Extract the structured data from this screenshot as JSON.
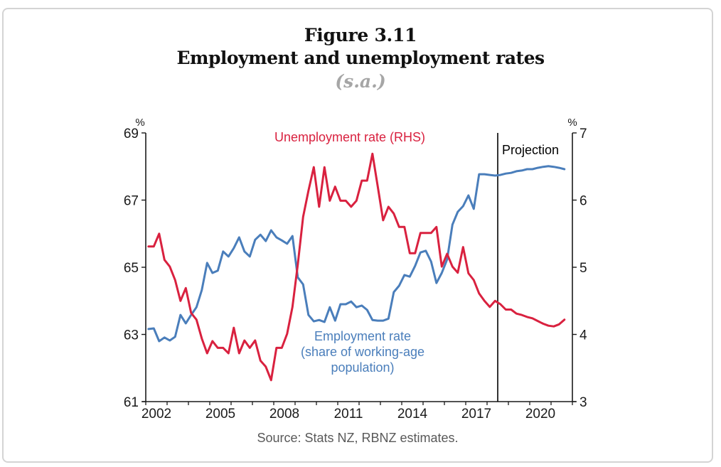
{
  "figure": {
    "number_label": "Figure 3.11",
    "title": "Employment and unemployment rates",
    "subtitle": "(s.a.)",
    "source": "Source: Stats NZ, RBNZ estimates."
  },
  "colors": {
    "employment": "#4a7ebb",
    "unemployment": "#d9213f",
    "axis": "#1a1a1a",
    "subtitle": "#a6a6a6",
    "source": "#595959"
  },
  "chart_data": {
    "type": "line",
    "title": "Employment and unemployment rates",
    "subtitle": "(s.a.)",
    "xlabel": "",
    "x_ticks": [
      "2002",
      "2005",
      "2008",
      "2011",
      "2014",
      "2017",
      "2020"
    ],
    "x_range": [
      2002.0,
      2021.85
    ],
    "frequency": "quarterly",
    "x_start": "2002Q1",
    "left_axis": {
      "unit": "%",
      "ylim": [
        61,
        69
      ],
      "ticks": [
        "61",
        "63",
        "65",
        "67",
        "69"
      ]
    },
    "right_axis": {
      "unit": "%",
      "ylim": [
        3,
        7
      ],
      "ticks": [
        "3",
        "4",
        "5",
        "6",
        "7"
      ]
    },
    "projection": {
      "label": "Projection",
      "start": 2018.5
    },
    "grid": false,
    "series": [
      {
        "name": "Employment rate (share of working-age population)",
        "label_lines": [
          "Employment rate",
          "(share of working-age",
          "population)"
        ],
        "axis": "left",
        "color": "#4a7ebb",
        "values": [
          63.16,
          63.18,
          62.8,
          62.91,
          62.82,
          62.93,
          63.58,
          63.33,
          63.58,
          63.81,
          64.32,
          65.13,
          64.83,
          64.9,
          65.47,
          65.32,
          65.57,
          65.89,
          65.47,
          65.32,
          65.82,
          65.97,
          65.78,
          66.1,
          65.89,
          65.8,
          65.7,
          65.93,
          64.7,
          64.49,
          63.58,
          63.39,
          63.43,
          63.37,
          63.81,
          63.41,
          63.9,
          63.9,
          63.98,
          63.81,
          63.86,
          63.73,
          63.43,
          63.41,
          63.41,
          63.47,
          64.26,
          64.45,
          64.77,
          64.72,
          65.04,
          65.44,
          65.49,
          65.17,
          64.53,
          64.83,
          65.23,
          66.27,
          66.65,
          66.82,
          67.14,
          66.74,
          67.77,
          67.77,
          67.75,
          67.73,
          67.75,
          67.79,
          67.81,
          67.86,
          67.88,
          67.92,
          67.92,
          67.96,
          67.99,
          68.01,
          67.99,
          67.96,
          67.92
        ]
      },
      {
        "name": "Unemployment rate (RHS)",
        "label_lines": [
          "Unemployment rate (RHS)"
        ],
        "axis": "right",
        "color": "#d9213f",
        "values": [
          5.31,
          5.31,
          5.5,
          5.11,
          5.01,
          4.81,
          4.5,
          4.69,
          4.32,
          4.22,
          3.94,
          3.72,
          3.9,
          3.8,
          3.8,
          3.72,
          4.1,
          3.72,
          3.91,
          3.8,
          3.91,
          3.61,
          3.52,
          3.32,
          3.8,
          3.8,
          4.01,
          4.41,
          5.04,
          5.75,
          6.14,
          6.49,
          5.9,
          6.49,
          5.99,
          6.2,
          5.99,
          5.99,
          5.9,
          5.99,
          6.29,
          6.29,
          6.69,
          6.2,
          5.7,
          5.9,
          5.8,
          5.6,
          5.6,
          5.21,
          5.21,
          5.51,
          5.51,
          5.51,
          5.6,
          5.01,
          5.2,
          5.01,
          4.92,
          5.3,
          4.91,
          4.81,
          4.61,
          4.5,
          4.41,
          4.5,
          4.45,
          4.37,
          4.37,
          4.31,
          4.29,
          4.26,
          4.24,
          4.2,
          4.16,
          4.13,
          4.12,
          4.15,
          4.22
        ]
      }
    ]
  }
}
